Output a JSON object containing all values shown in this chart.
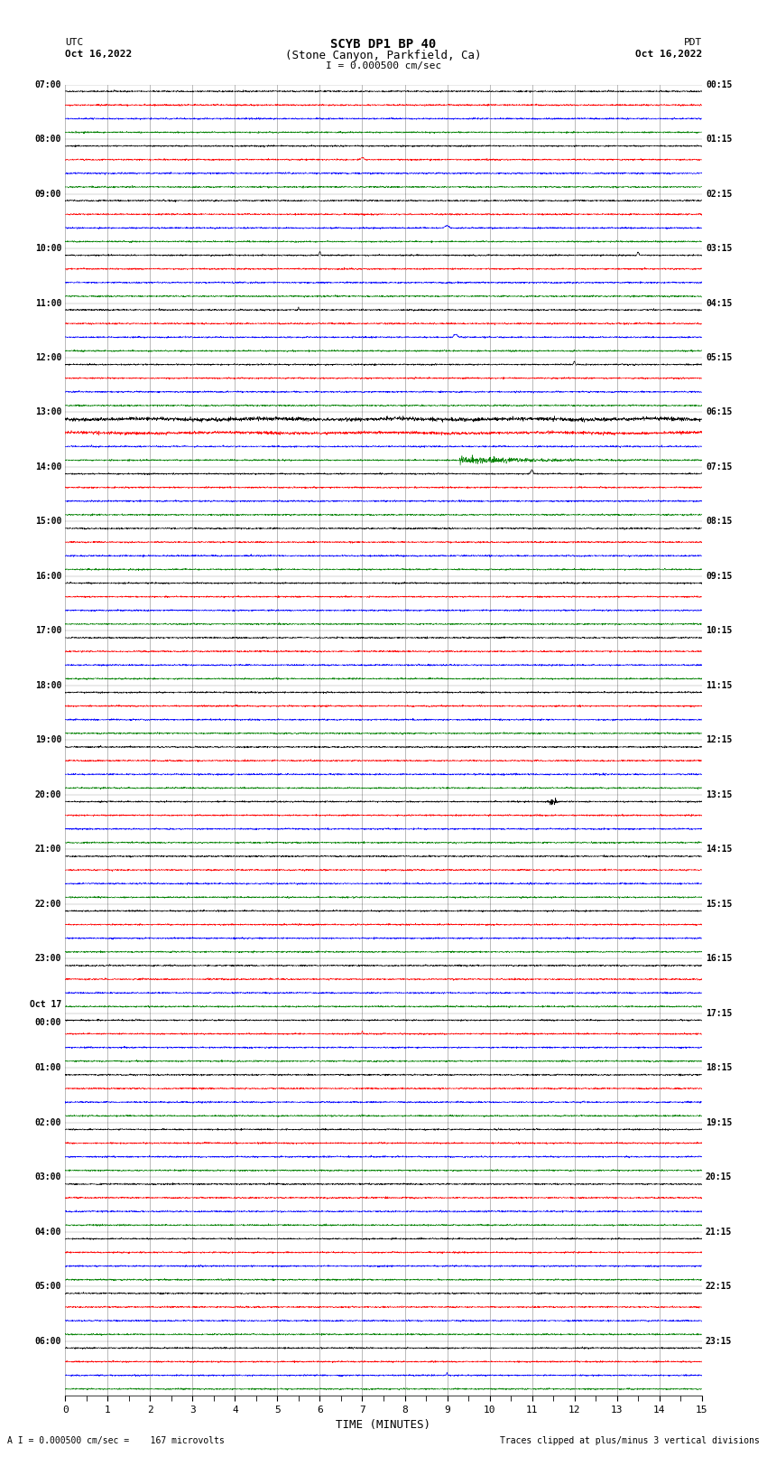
{
  "title_line1": "SCYB DP1 BP 40",
  "title_line2": "(Stone Canyon, Parkfield, Ca)",
  "scale_label": "I = 0.000500 cm/sec",
  "left_header_line1": "UTC",
  "left_header_line2": "Oct 16,2022",
  "right_header_line1": "PDT",
  "right_header_line2": "Oct 16,2022",
  "bottom_label1": "A I = 0.000500 cm/sec =    167 microvolts",
  "bottom_label2": "Traces clipped at plus/minus 3 vertical divisions",
  "xlabel": "TIME (MINUTES)",
  "time_min": 0,
  "time_max": 15,
  "n_hours": 24,
  "traces_per_hour": 4,
  "row_colors": [
    "black",
    "red",
    "blue",
    "green"
  ],
  "left_times": [
    "07:00",
    "08:00",
    "09:00",
    "10:00",
    "11:00",
    "12:00",
    "13:00",
    "14:00",
    "15:00",
    "16:00",
    "17:00",
    "18:00",
    "19:00",
    "20:00",
    "21:00",
    "22:00",
    "23:00",
    "Oct 17\n00:00",
    "01:00",
    "02:00",
    "03:00",
    "04:00",
    "05:00",
    "06:00"
  ],
  "right_times": [
    "00:15",
    "01:15",
    "02:15",
    "03:15",
    "04:15",
    "05:15",
    "06:15",
    "07:15",
    "08:15",
    "09:15",
    "10:15",
    "11:15",
    "12:15",
    "13:15",
    "14:15",
    "15:15",
    "16:15",
    "17:15",
    "18:15",
    "19:15",
    "20:15",
    "21:15",
    "22:15",
    "23:15"
  ],
  "bg_color": "#ffffff",
  "grid_color": "#888888",
  "trace_linewidth": 0.4,
  "noise_std": 0.06,
  "seed": 42
}
